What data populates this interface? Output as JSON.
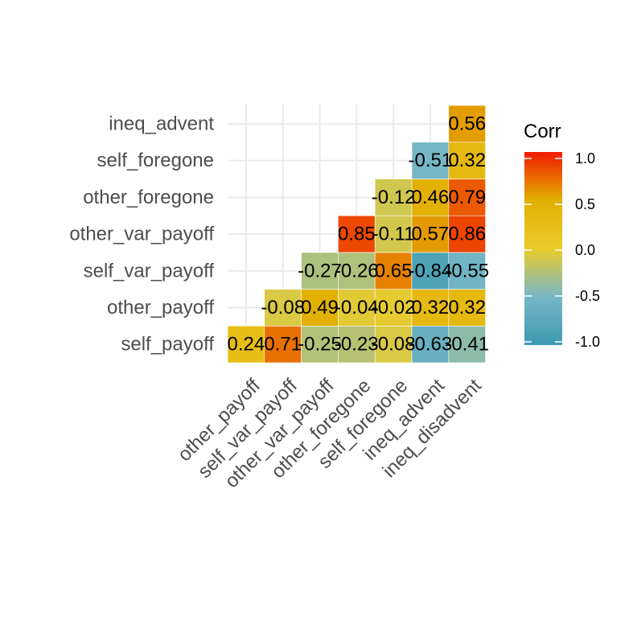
{
  "chart_data": {
    "type": "heatmap",
    "x_labels": [
      "other_payoff",
      "self_var_payoff",
      "other_var_payoff",
      "other_foregone",
      "self_foregone",
      "ineq_advent",
      "ineq_disadvent"
    ],
    "y_labels": [
      "self_payoff",
      "other_payoff",
      "self_var_payoff",
      "other_var_payoff",
      "other_foregone",
      "self_foregone",
      "ineq_advent"
    ],
    "cells": [
      {
        "row": "self_payoff",
        "col": "other_payoff",
        "value": 0.24,
        "label": "0.24"
      },
      {
        "row": "self_payoff",
        "col": "self_var_payoff",
        "value": 0.71,
        "label": "0.71"
      },
      {
        "row": "self_payoff",
        "col": "other_var_payoff",
        "value": -0.25,
        "label": "-0.25"
      },
      {
        "row": "self_payoff",
        "col": "other_foregone",
        "value": -0.23,
        "label": "-0.23"
      },
      {
        "row": "self_payoff",
        "col": "self_foregone",
        "value": -0.08,
        "label": "-0.08"
      },
      {
        "row": "self_payoff",
        "col": "ineq_advent",
        "value": -0.63,
        "label": "-0.63"
      },
      {
        "row": "self_payoff",
        "col": "ineq_disadvent",
        "value": -0.41,
        "label": "-0.41"
      },
      {
        "row": "other_payoff",
        "col": "self_var_payoff",
        "value": -0.08,
        "label": "-0.08"
      },
      {
        "row": "other_payoff",
        "col": "other_var_payoff",
        "value": 0.49,
        "label": "0.49"
      },
      {
        "row": "other_payoff",
        "col": "other_foregone",
        "value": -0.04,
        "label": "-0.04"
      },
      {
        "row": "other_payoff",
        "col": "self_foregone",
        "value": -0.02,
        "label": "-0.02"
      },
      {
        "row": "other_payoff",
        "col": "ineq_advent",
        "value": 0.32,
        "label": "0.32"
      },
      {
        "row": "other_payoff",
        "col": "ineq_disadvent",
        "value": 0.32,
        "label": "0.32"
      },
      {
        "row": "self_var_payoff",
        "col": "other_var_payoff",
        "value": -0.27,
        "label": "-0.27"
      },
      {
        "row": "self_var_payoff",
        "col": "other_foregone",
        "value": -0.26,
        "label": "-0.26"
      },
      {
        "row": "self_var_payoff",
        "col": "self_foregone",
        "value": 0.65,
        "label": "0.65"
      },
      {
        "row": "self_var_payoff",
        "col": "ineq_advent",
        "value": -0.84,
        "label": "-0.84"
      },
      {
        "row": "self_var_payoff",
        "col": "ineq_disadvent",
        "value": -0.55,
        "label": "-0.55"
      },
      {
        "row": "other_var_payoff",
        "col": "other_foregone",
        "value": 0.85,
        "label": "0.85"
      },
      {
        "row": "other_var_payoff",
        "col": "self_foregone",
        "value": -0.11,
        "label": "-0.11"
      },
      {
        "row": "other_var_payoff",
        "col": "ineq_advent",
        "value": 0.57,
        "label": "0.57"
      },
      {
        "row": "other_var_payoff",
        "col": "ineq_disadvent",
        "value": 0.86,
        "label": "0.86"
      },
      {
        "row": "other_foregone",
        "col": "self_foregone",
        "value": -0.12,
        "label": "-0.12"
      },
      {
        "row": "other_foregone",
        "col": "ineq_advent",
        "value": 0.46,
        "label": "0.46"
      },
      {
        "row": "other_foregone",
        "col": "ineq_disadvent",
        "value": 0.79,
        "label": "0.79"
      },
      {
        "row": "self_foregone",
        "col": "ineq_advent",
        "value": -0.51,
        "label": "-0.51"
      },
      {
        "row": "self_foregone",
        "col": "ineq_disadvent",
        "value": 0.32,
        "label": "0.32"
      },
      {
        "row": "ineq_advent",
        "col": "ineq_disadvent",
        "value": 0.56,
        "label": "0.56"
      }
    ],
    "legend": {
      "title": "Corr",
      "ticks": [
        1.0,
        0.5,
        0.0,
        -0.5,
        -1.0
      ],
      "tick_labels": [
        "1.0",
        "0.5",
        "0.0",
        "-0.5",
        "-1.0"
      ],
      "range": [
        -1.0,
        1.0
      ],
      "placement": "right"
    },
    "color_scale": {
      "low": "#3B9AB2",
      "low_mid": "#78B7C5",
      "mid": "#EBCC2A",
      "high_mid": "#E1AF00",
      "high": "#F21A00"
    },
    "grid": true
  }
}
